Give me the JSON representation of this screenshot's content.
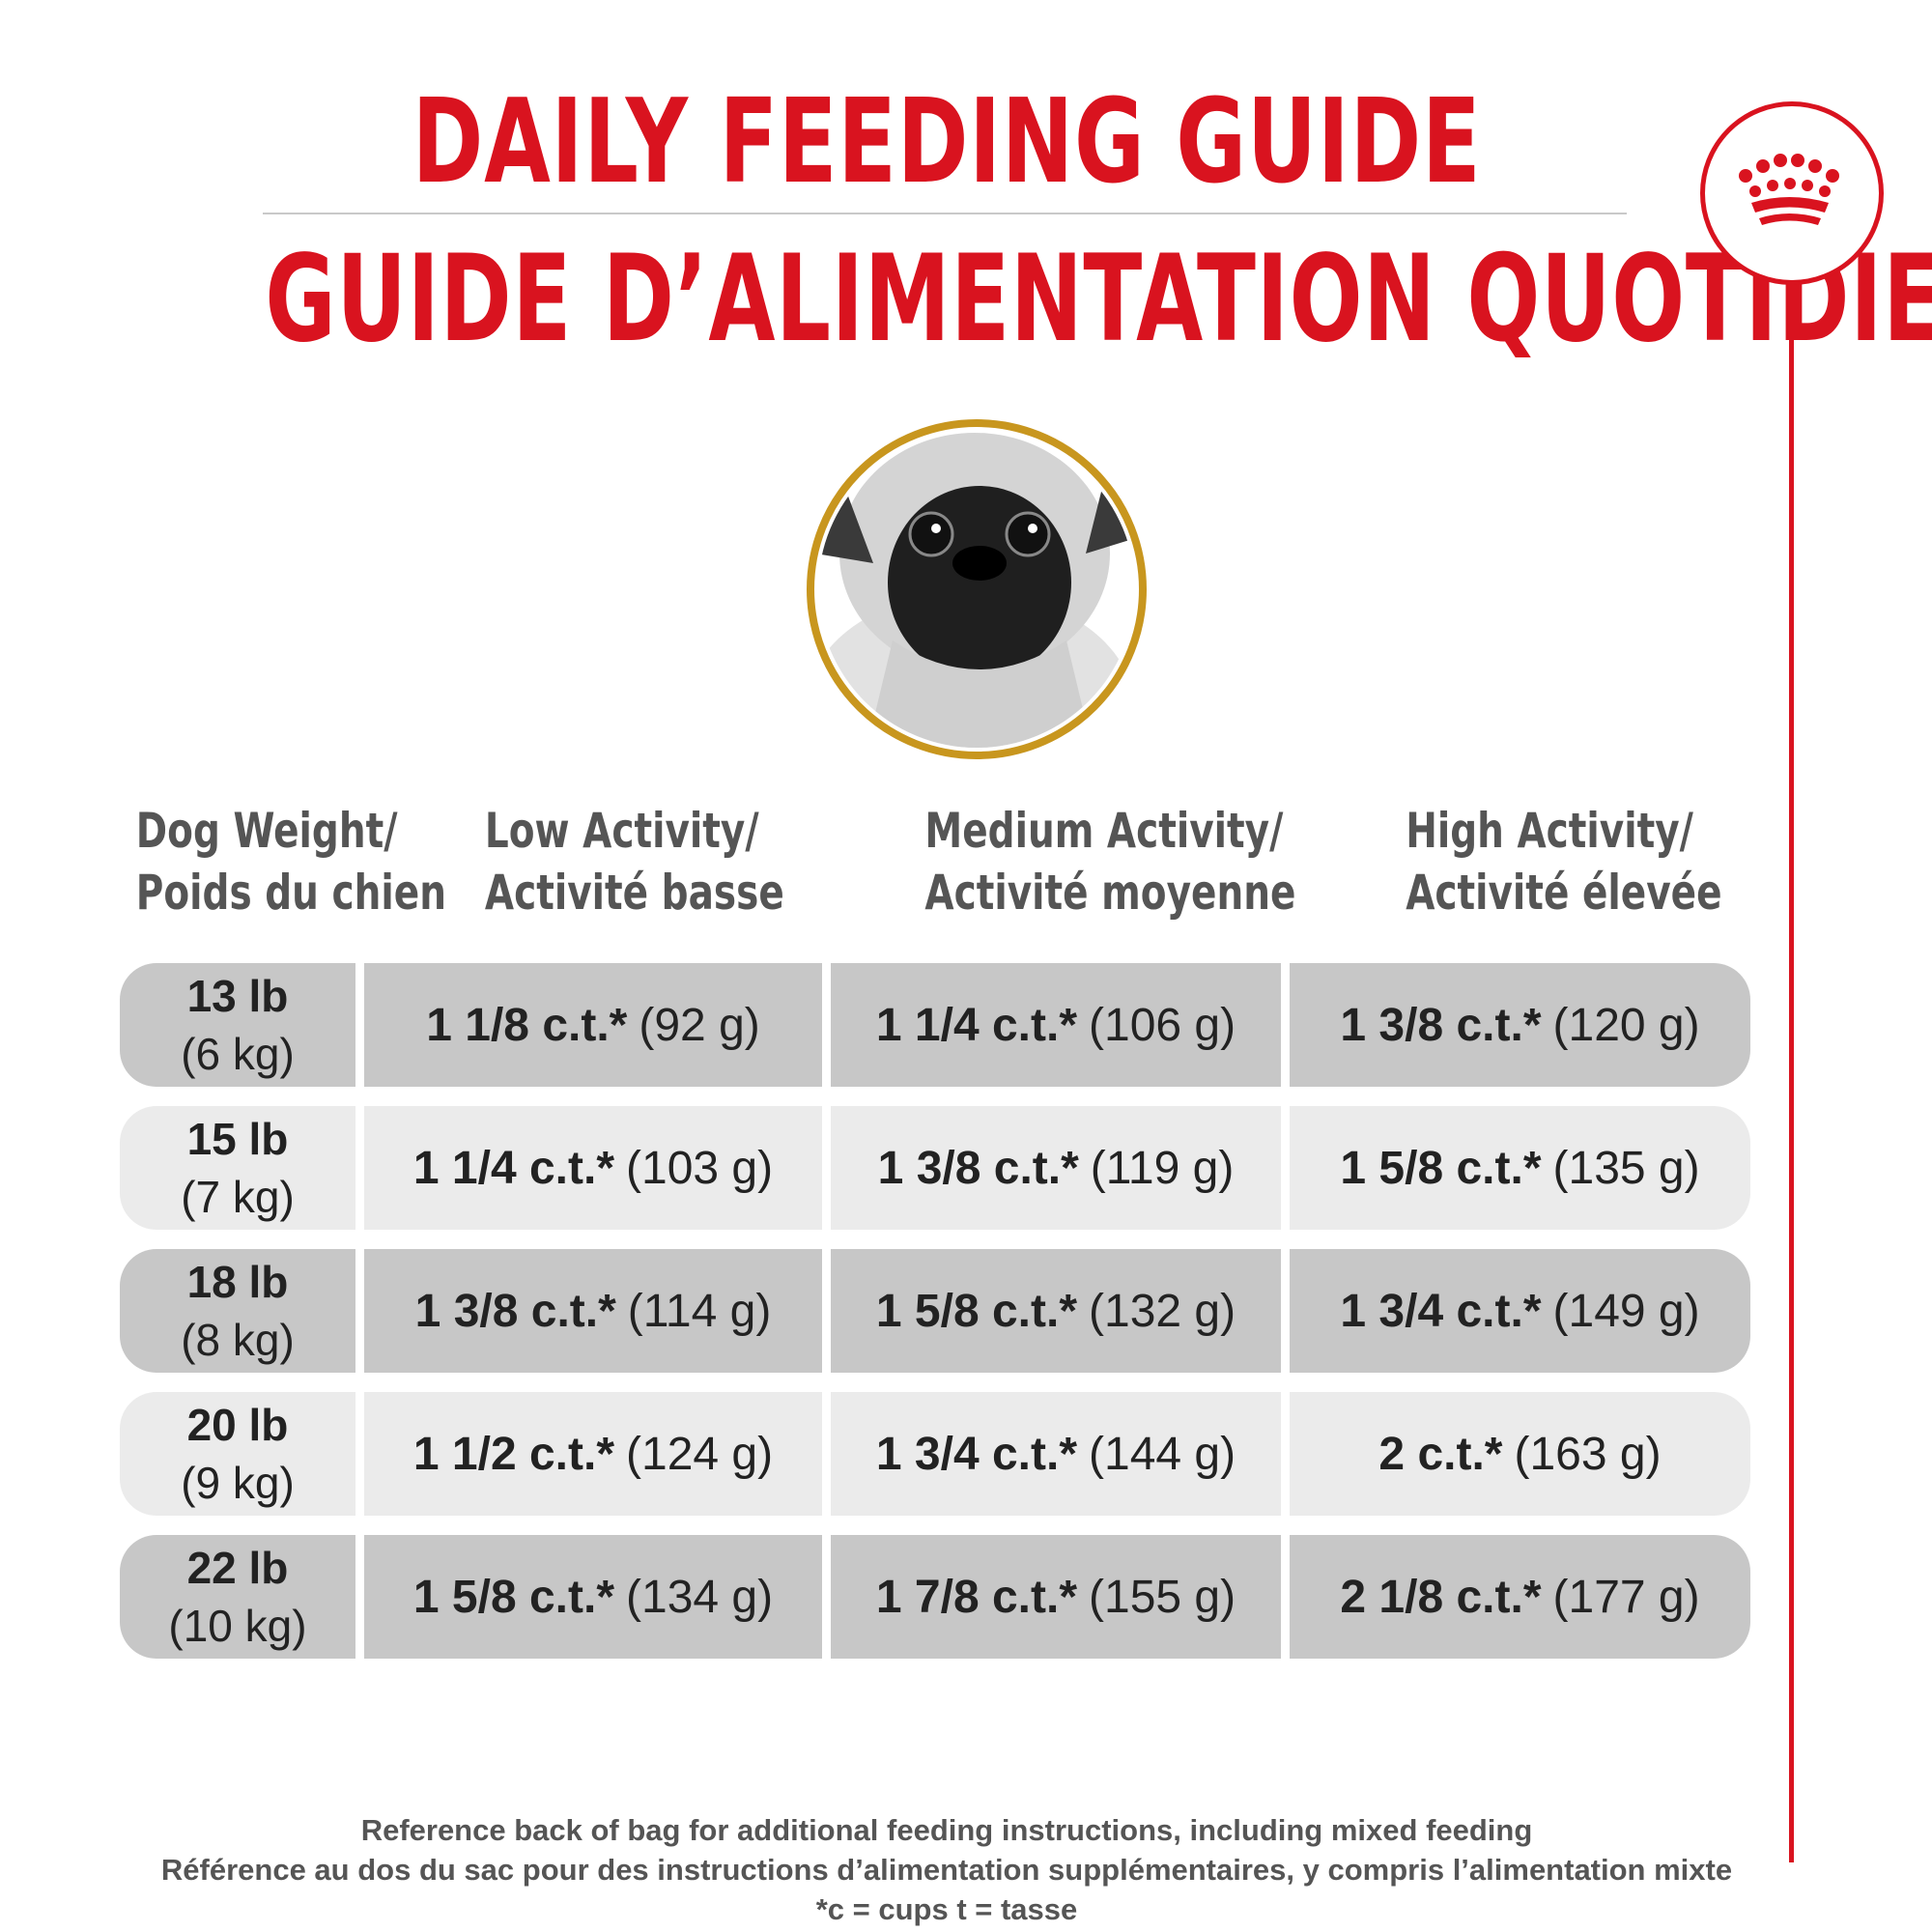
{
  "title_en": "DAILY FEEDING GUIDE",
  "title_fr": "GUIDE D’ALIMENTATION QUOTIDIEN",
  "headers": [
    {
      "en": "Dog Weight/",
      "fr": "Poids du chien"
    },
    {
      "en": "Low Activity/",
      "fr": "Activité basse"
    },
    {
      "en": "Medium Activity/",
      "fr": "Activité moyenne"
    },
    {
      "en": "High Activity/",
      "fr": "Activité élevée"
    }
  ],
  "rows": [
    {
      "lb": "13 lb",
      "kg": "(6 kg)",
      "cells": [
        {
          "cups": "1 1/8 c.t.*",
          "grams": "(92 g)"
        },
        {
          "cups": "1 1/4 c.t.*",
          "grams": "(106 g)"
        },
        {
          "cups": "1 3/8 c.t.*",
          "grams": "(120 g)"
        }
      ]
    },
    {
      "lb": "15 lb",
      "kg": "(7 kg)",
      "cells": [
        {
          "cups": "1 1/4 c.t.*",
          "grams": "(103 g)"
        },
        {
          "cups": "1 3/8 c.t.*",
          "grams": "(119 g)"
        },
        {
          "cups": "1 5/8 c.t.*",
          "grams": "(135 g)"
        }
      ]
    },
    {
      "lb": "18 lb",
      "kg": "(8 kg)",
      "cells": [
        {
          "cups": "1 3/8 c.t.*",
          "grams": "(114 g)"
        },
        {
          "cups": "1 5/8 c.t.*",
          "grams": "(132 g)"
        },
        {
          "cups": "1 3/4 c.t.*",
          "grams": "(149 g)"
        }
      ]
    },
    {
      "lb": "20 lb",
      "kg": "(9 kg)",
      "cells": [
        {
          "cups": "1 1/2 c.t.*",
          "grams": "(124 g)"
        },
        {
          "cups": "1 3/4 c.t.*",
          "grams": "(144 g)"
        },
        {
          "cups": "2 c.t.*",
          "grams": "(163 g)"
        }
      ]
    },
    {
      "lb": "22 lb",
      "kg": "(10 kg)",
      "cells": [
        {
          "cups": "1 5/8 c.t.*",
          "grams": "(134 g)"
        },
        {
          "cups": "1 7/8 c.t.*",
          "grams": "(155 g)"
        },
        {
          "cups": "2 1/8 c.t.*",
          "grams": "(177 g)"
        }
      ]
    }
  ],
  "footnotes": {
    "en": "Reference back of bag for additional feeding instructions, including mixed feeding",
    "fr": "Référence au dos du sac pour des instructions d’alimentation supplémentaires, y compris l’alimentation mixte",
    "legend": "*c = cups t = tasse"
  },
  "colors": {
    "accent": "#d9131f",
    "ring": "#c8961e",
    "row_dark": "#c7c7c7",
    "row_light": "#ebebeb"
  },
  "icons": {
    "logo": "crown-icon",
    "portrait": "pug-dog-portrait"
  }
}
